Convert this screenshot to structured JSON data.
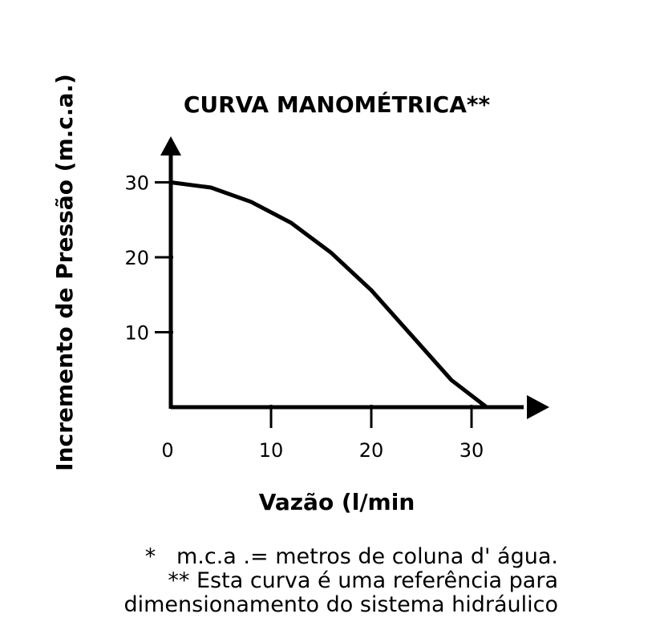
{
  "chart_data": {
    "type": "line",
    "title": "CURVA MANOMÉTRICA**",
    "xlabel": "Vazão (l/min",
    "ylabel": "Incremento de Pressão (m.c.a.)",
    "x_ticks": [
      0,
      10,
      20,
      30
    ],
    "y_ticks": [
      10,
      20,
      30
    ],
    "xlim": [
      0,
      36
    ],
    "ylim": [
      0,
      35
    ],
    "grid": false,
    "series": [
      {
        "x": [
          0,
          4,
          8,
          12,
          16,
          20,
          24,
          28,
          31.5
        ],
        "y": [
          30,
          29.3,
          27.4,
          24.6,
          20.6,
          15.6,
          9.6,
          3.6,
          0
        ]
      }
    ]
  },
  "footnotes": [
    "*   m.c.a .= metros de coluna d' água.",
    "** Esta curva é uma referência para",
    "dimensionamento do sistema hidráulico"
  ]
}
